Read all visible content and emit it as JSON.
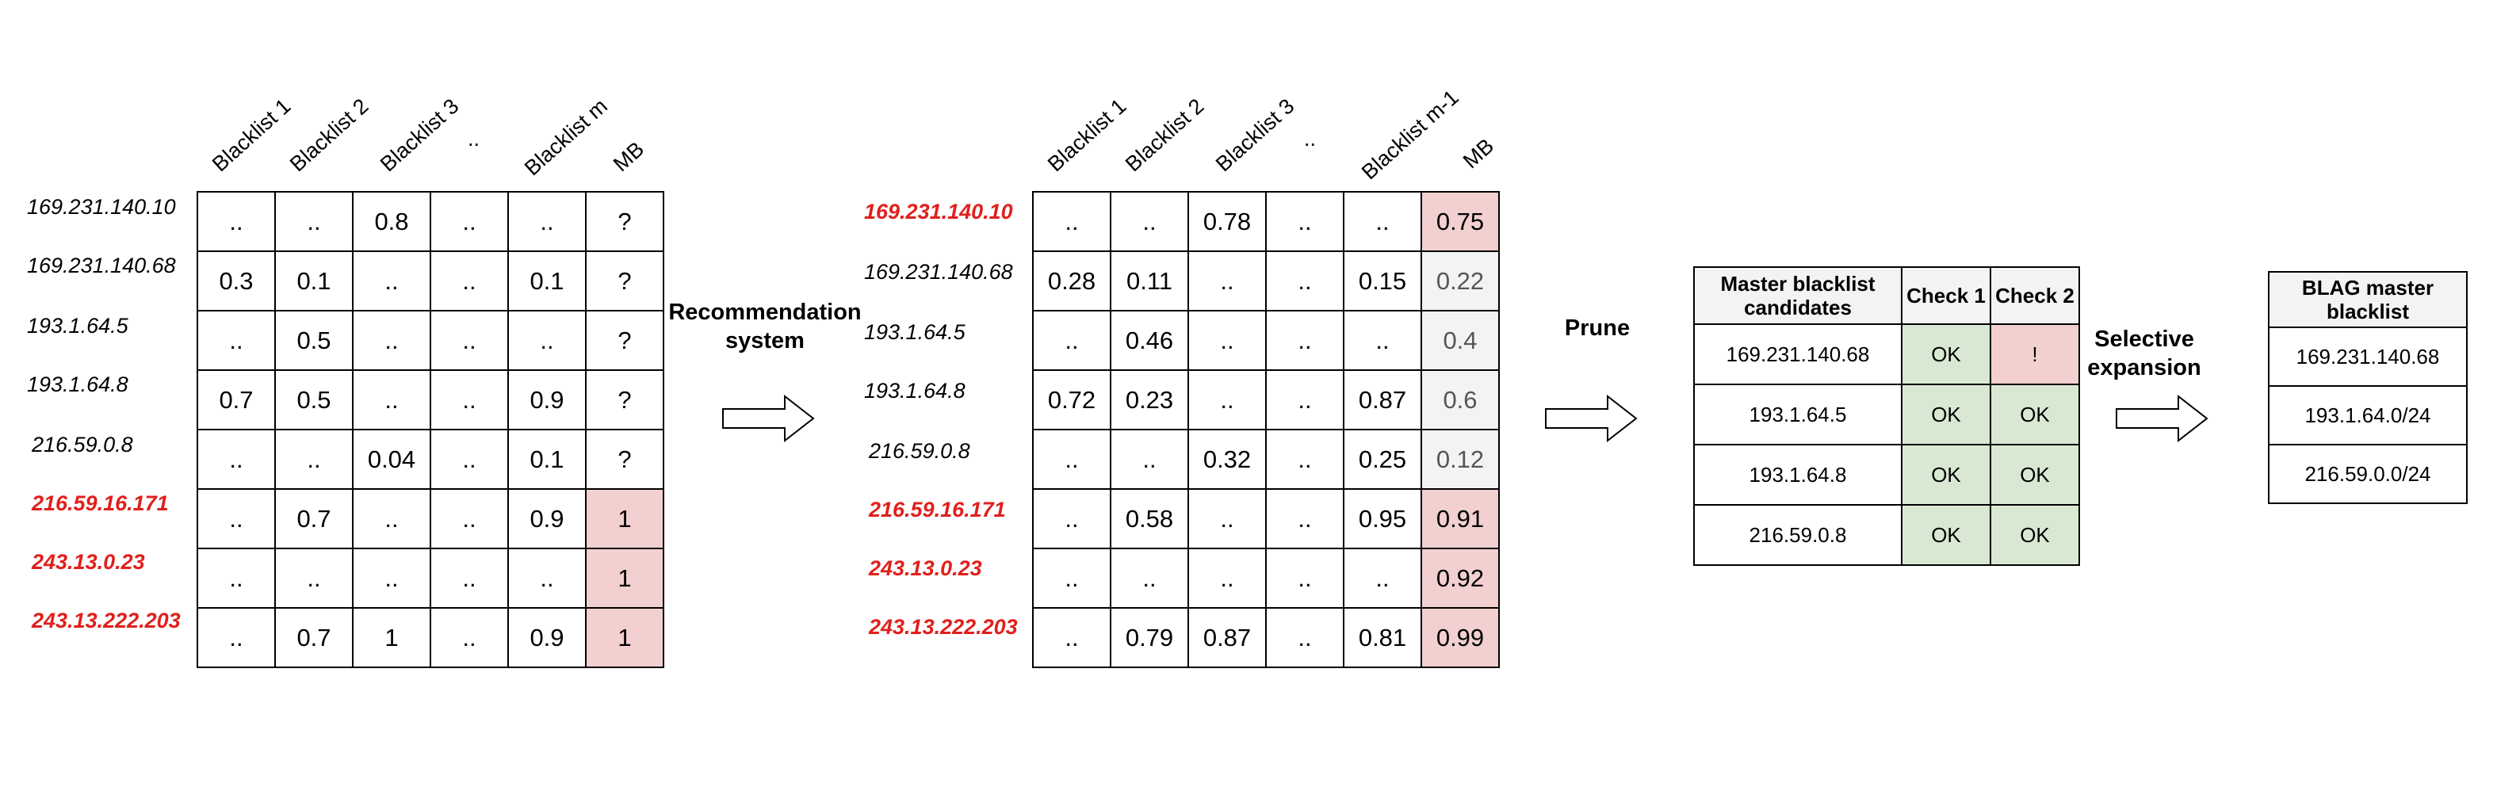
{
  "left_matrix": {
    "columns": [
      "Blacklist 1",
      "Blacklist 2",
      "Blacklist 3",
      "..",
      "Blacklist m",
      "MB"
    ],
    "rows": [
      {
        "ip": "169.231.140.10",
        "listed": false,
        "cells": [
          "..",
          "..",
          "0.8",
          "..",
          "..",
          "?"
        ]
      },
      {
        "ip": "169.231.140.68",
        "listed": false,
        "cells": [
          "0.3",
          "0.1",
          "..",
          "..",
          "0.1",
          "?"
        ]
      },
      {
        "ip": "193.1.64.5",
        "listed": false,
        "cells": [
          "..",
          "0.5",
          "..",
          "..",
          "..",
          "?"
        ]
      },
      {
        "ip": "193.1.64.8",
        "listed": false,
        "cells": [
          "0.7",
          "0.5",
          "..",
          "..",
          "0.9",
          "?"
        ]
      },
      {
        "ip": "216.59.0.8",
        "listed": false,
        "cells": [
          "..",
          "..",
          "0.04",
          "..",
          "0.1",
          "?"
        ]
      },
      {
        "ip": "216.59.16.171",
        "listed": true,
        "cells": [
          "..",
          "0.7",
          "..",
          "..",
          "0.9",
          "1"
        ]
      },
      {
        "ip": "243.13.0.23",
        "listed": true,
        "cells": [
          "..",
          "..",
          "..",
          "..",
          "..",
          "1"
        ]
      },
      {
        "ip": "243.13.222.203",
        "listed": true,
        "cells": [
          "..",
          "0.7",
          "1",
          "..",
          "0.9",
          "1"
        ]
      }
    ]
  },
  "arrow1_label": "Recommendation\nsystem",
  "right_matrix": {
    "columns": [
      "Blacklist 1",
      "Blacklist 2",
      "Blacklist 3",
      "..",
      "Blacklist m-1",
      "MB"
    ],
    "rows": [
      {
        "ip": "169.231.140.10",
        "listed": true,
        "cells": [
          "..",
          "..",
          "0.78",
          "..",
          "..",
          "0.75"
        ]
      },
      {
        "ip": "169.231.140.68",
        "listed": false,
        "cells": [
          "0.28",
          "0.11",
          "..",
          "..",
          "0.15",
          "0.22"
        ]
      },
      {
        "ip": "193.1.64.5",
        "listed": false,
        "cells": [
          "..",
          "0.46",
          "..",
          "..",
          "..",
          "0.4"
        ]
      },
      {
        "ip": "193.1.64.8",
        "listed": false,
        "cells": [
          "0.72",
          "0.23",
          "..",
          "..",
          "0.87",
          "0.6"
        ]
      },
      {
        "ip": "216.59.0.8",
        "listed": false,
        "cells": [
          "..",
          "..",
          "0.32",
          "..",
          "0.25",
          "0.12"
        ]
      },
      {
        "ip": "216.59.16.171",
        "listed": true,
        "cells": [
          "..",
          "0.58",
          "..",
          "..",
          "0.95",
          "0.91"
        ]
      },
      {
        "ip": "243.13.0.23",
        "listed": true,
        "cells": [
          "..",
          "..",
          "..",
          "..",
          "..",
          "0.92"
        ]
      },
      {
        "ip": "243.13.222.203",
        "listed": true,
        "cells": [
          "..",
          "0.79",
          "0.87",
          "..",
          "0.81",
          "0.99"
        ]
      }
    ]
  },
  "arrow2_label": "Prune",
  "candidates": {
    "headers": [
      "Master blacklist candidates",
      "Check 1",
      "Check 2"
    ],
    "rows": [
      {
        "ip": "169.231.140.68",
        "check1": "OK",
        "check2": "!"
      },
      {
        "ip": "193.1.64.5",
        "check1": "OK",
        "check2": "OK"
      },
      {
        "ip": "193.1.64.8",
        "check1": "OK",
        "check2": "OK"
      },
      {
        "ip": "216.59.0.8",
        "check1": "OK",
        "check2": "OK"
      }
    ]
  },
  "arrow3_label": "Selective\nexpansion",
  "blag": {
    "header": "BLAG master blacklist",
    "rows": [
      "169.231.140.68",
      "193.1.64.0/24",
      "216.59.0.0/24"
    ]
  },
  "colors": {
    "listed_ip": "#e0201c",
    "positive_cell": "#f2d0d0",
    "score_cell": "#f3f3f3",
    "ok_cell": "#d9e8d2"
  }
}
